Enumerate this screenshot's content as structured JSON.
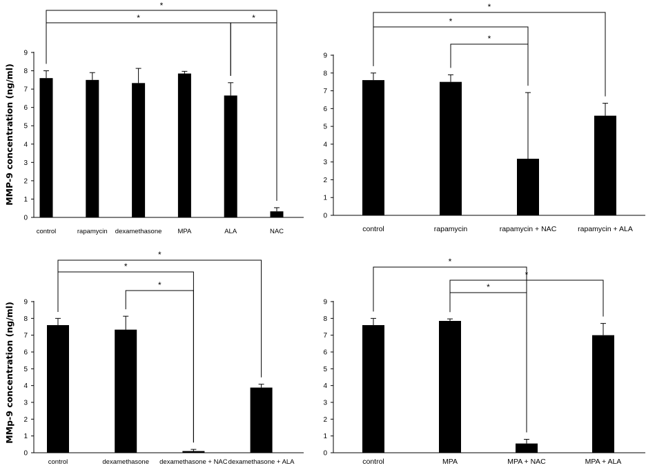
{
  "chart_data": [
    {
      "type": "bar",
      "ylabel": "MMP-9 concentration  (ng/ml)",
      "ylim": [
        0,
        9
      ],
      "yticks": [
        "0",
        "1",
        "2",
        "3",
        "4",
        "5",
        "6",
        "7",
        "8",
        "9"
      ],
      "categories": [
        "control",
        "rapamycin",
        "dexamethasone",
        "MPA",
        "ALA",
        "NAC"
      ],
      "values": [
        7.6,
        7.5,
        7.33,
        7.85,
        6.65,
        0.33
      ],
      "errors": [
        0.4,
        0.4,
        0.8,
        0.12,
        0.7,
        0.2
      ],
      "bar_color": "#000000",
      "significance": [
        {
          "from": 0,
          "to": 5,
          "label": "*"
        },
        {
          "from": 0,
          "to": 4,
          "label": "*"
        },
        {
          "from": 4,
          "to": 5,
          "label": "*"
        }
      ]
    },
    {
      "type": "bar",
      "ylabel": "",
      "ylim": [
        0,
        9
      ],
      "yticks": [
        "0",
        "1",
        "2",
        "3",
        "4",
        "5",
        "6",
        "7",
        "8",
        "9"
      ],
      "categories": [
        "control",
        "rapamycin",
        "rapamycin + NAC",
        "rapamycin + ALA"
      ],
      "values": [
        7.6,
        7.5,
        3.18,
        5.6
      ],
      "errors": [
        0.4,
        0.4,
        3.72,
        0.7
      ],
      "bar_color": "#000000",
      "significance": [
        {
          "from": 0,
          "to": 3,
          "label": "*"
        },
        {
          "from": 0,
          "to": 2,
          "label": "*"
        },
        {
          "from": 1,
          "to": 2,
          "label": "*"
        }
      ]
    },
    {
      "type": "bar",
      "ylabel": "MMp-9 concentration  (ng/ml)",
      "ylim": [
        0,
        9
      ],
      "yticks": [
        "0",
        "1",
        "2",
        "3",
        "4",
        "5",
        "6",
        "7",
        "8",
        "9"
      ],
      "categories": [
        "control",
        "dexamethasone",
        "dexamethasone + NAC",
        "dexamethasone + ALA"
      ],
      "values": [
        7.6,
        7.33,
        0.1,
        3.88
      ],
      "errors": [
        0.4,
        0.8,
        0.1,
        0.2
      ],
      "bar_color": "#000000",
      "significance": [
        {
          "from": 0,
          "to": 3,
          "label": "*"
        },
        {
          "from": 0,
          "to": 2,
          "label": "*"
        },
        {
          "from": 1,
          "to": 2,
          "label": "*"
        }
      ]
    },
    {
      "type": "bar",
      "ylabel": "",
      "ylim": [
        0,
        9
      ],
      "yticks": [
        "0",
        "1",
        "2",
        "3",
        "4",
        "5",
        "6",
        "7",
        "8",
        "9"
      ],
      "categories": [
        "control",
        "MPA",
        "MPA + NAC",
        "MPA + ALA"
      ],
      "values": [
        7.6,
        7.85,
        0.55,
        7.0
      ],
      "errors": [
        0.4,
        0.12,
        0.25,
        0.7
      ],
      "bar_color": "#000000",
      "significance": [
        {
          "from": 0,
          "to": 2,
          "label": "*"
        },
        {
          "from": 1,
          "to": 3,
          "label": "*"
        },
        {
          "from": 1,
          "to": 2,
          "label": "*"
        }
      ]
    }
  ]
}
